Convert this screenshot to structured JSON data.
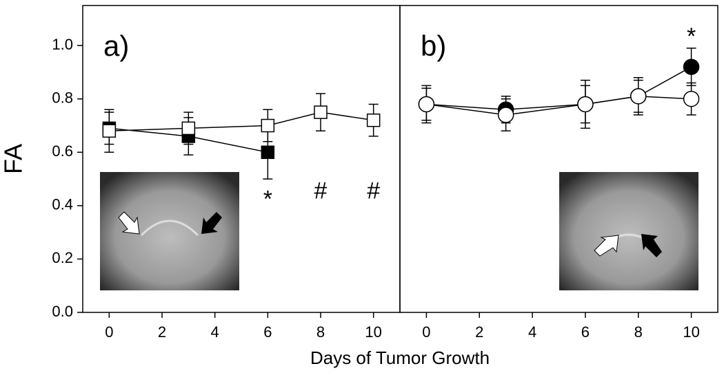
{
  "chart_data": [
    {
      "type": "line",
      "label": "a)",
      "ylabel": "FA",
      "xlabel": "Days of Tumor Growth",
      "xlim": [
        -1,
        11
      ],
      "xticks": [
        0,
        2,
        4,
        6,
        8,
        10
      ],
      "ylim": [
        0,
        1.15
      ],
      "yticks": [
        {
          "value": 0,
          "label": "0.0"
        },
        0.2,
        0.4,
        0.6,
        0.8,
        {
          "value": 1,
          "label": "1.0"
        }
      ],
      "marker": "square",
      "series": [
        {
          "color": "#000000",
          "x": [
            0,
            3,
            6
          ],
          "values": [
            0.69,
            0.66,
            0.6
          ],
          "errors": [
            0.06,
            0.07,
            0.1
          ]
        },
        {
          "color": "#ffffff",
          "x": [
            0,
            3,
            6,
            8,
            10
          ],
          "values": [
            0.68,
            0.69,
            0.7,
            0.75,
            0.72
          ],
          "errors": [
            0.08,
            0.06,
            0.06,
            0.07,
            0.06
          ]
        }
      ],
      "annotations": [
        {
          "text": "*",
          "x": 6,
          "y": 0.44
        },
        {
          "text": "#",
          "x": 8,
          "y": 0.45
        },
        {
          "text": "#",
          "x": 10,
          "y": 0.45
        }
      ]
    },
    {
      "type": "line",
      "label": "b)",
      "xlim": [
        -1,
        11
      ],
      "xticks": [
        0,
        2,
        4,
        6,
        8,
        10
      ],
      "ylim": [
        0,
        1.15
      ],
      "marker": "circle",
      "series": [
        {
          "color": "#000000",
          "x": [
            0,
            3,
            6,
            8,
            10
          ],
          "values": [
            0.78,
            0.76,
            0.78,
            0.81,
            0.92
          ],
          "errors": [
            0.06,
            0.05,
            0.07,
            0.06,
            0.07
          ]
        },
        {
          "color": "#ffffff",
          "x": [
            0,
            3,
            6,
            8,
            10
          ],
          "values": [
            0.78,
            0.74,
            0.78,
            0.81,
            0.8
          ],
          "errors": [
            0.07,
            0.06,
            0.09,
            0.07,
            0.06
          ]
        }
      ],
      "annotations": [
        {
          "text": "*",
          "x": 10,
          "y": 1.05
        }
      ]
    }
  ]
}
